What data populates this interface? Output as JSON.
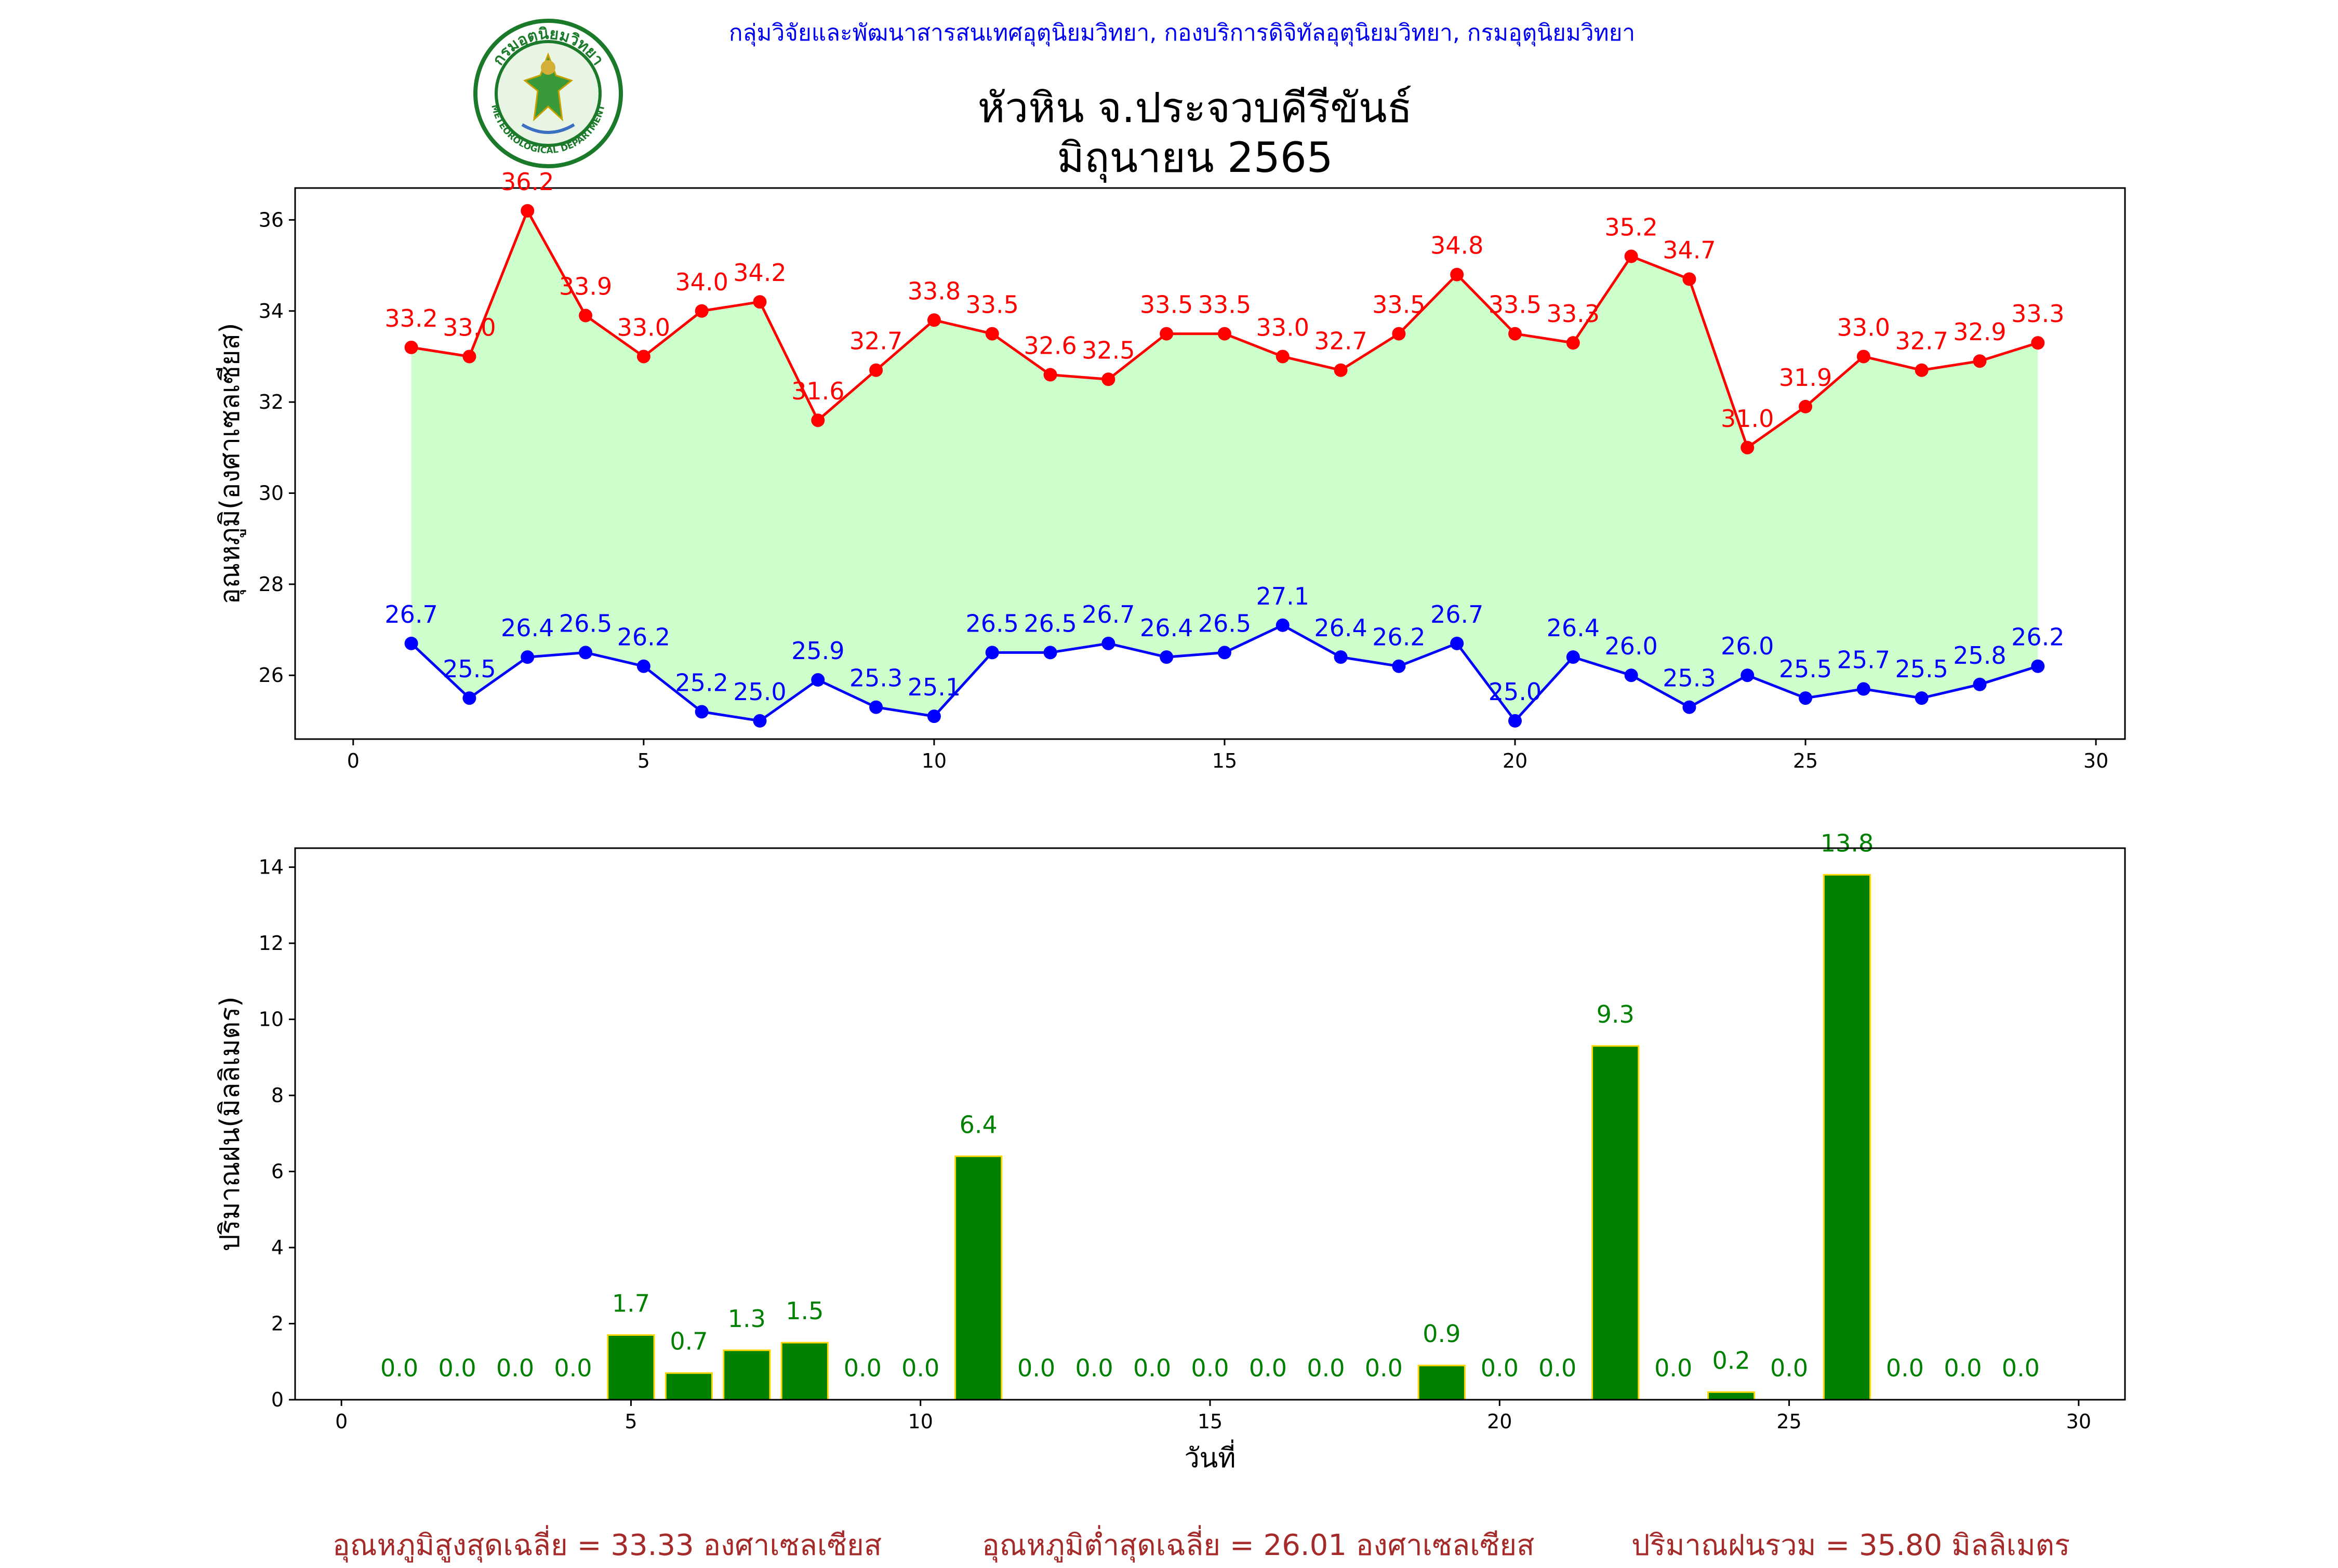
{
  "header": {
    "agency": "กลุ่มวิจัยและพัฒนาสารสนเทศอุตุนิยมวิทยา, กองบริการดิจิทัลอุตุนิยมวิทยา, กรมอุตุนิยมวิทยา",
    "title_line1": "หัวหิน จ.ประจวบคีรีขันธ์",
    "title_line2": "มิถุนายน 2565",
    "logo_text_top": "กรมอุตุนิยมวิทยา",
    "logo_text_bottom": "METEOROLOGICAL DEPARTMENT"
  },
  "footer": {
    "avg_max": "อุณหภูมิสูงสุดเฉลี่ย = 33.33 องศาเซลเซียส",
    "avg_min": "อุณหภูมิต่ำสุดเฉลี่ย = 26.01 องศาเซลเซียส",
    "total_rain": "ปริมาณฝนรวม = 35.80 มิลลิเมตร"
  },
  "colors": {
    "max_line": "#ff0000",
    "min_line": "#0000ff",
    "fill": "#ccffcc",
    "bar": "#008000",
    "bar_edge": "#ffd700",
    "bar_label": "#008000",
    "header": "#0000ee",
    "footer": "#a52a2a"
  },
  "chart_data": [
    {
      "type": "line",
      "ylabel": "อุณหภูมิ(องศาเซลเซียส)",
      "xlim": [
        -1,
        30.5
      ],
      "ylim": [
        24.6,
        36.7
      ],
      "x_ticks": [
        0,
        5,
        10,
        15,
        20,
        25,
        30
      ],
      "y_ticks": [
        26,
        28,
        30,
        32,
        34,
        36
      ],
      "grid": false,
      "x": [
        1,
        2,
        3,
        4,
        5,
        6,
        7,
        8,
        9,
        10,
        11,
        12,
        13,
        14,
        15,
        16,
        17,
        18,
        19,
        20,
        21,
        22,
        23,
        24,
        25,
        26,
        27,
        28,
        29
      ],
      "series": [
        {
          "key": "max",
          "values": [
            33.2,
            33.0,
            36.2,
            33.9,
            33.0,
            34.0,
            34.2,
            31.6,
            32.7,
            33.8,
            33.5,
            32.6,
            32.5,
            33.5,
            33.5,
            33.0,
            32.7,
            33.5,
            34.8,
            33.5,
            33.3,
            35.2,
            34.7,
            31.0,
            31.9,
            33.0,
            32.7,
            32.9,
            33.3
          ]
        },
        {
          "key": "min",
          "values": [
            26.7,
            25.5,
            26.4,
            26.5,
            26.2,
            25.2,
            25.0,
            25.9,
            25.3,
            25.1,
            26.5,
            26.5,
            26.7,
            26.4,
            26.5,
            27.1,
            26.4,
            26.2,
            26.7,
            25.0,
            26.4,
            26.0,
            25.3,
            26.0,
            25.5,
            25.7,
            25.5,
            25.8,
            26.2
          ]
        }
      ]
    },
    {
      "type": "bar",
      "xlabel": "วันที่",
      "ylabel": "ปริมาณฝน(มิลลิเมตร)",
      "xlim": [
        -0.8,
        30.8
      ],
      "ylim": [
        0,
        14.5
      ],
      "x_ticks": [
        0,
        5,
        10,
        15,
        20,
        25,
        30
      ],
      "y_ticks": [
        0,
        2,
        4,
        6,
        8,
        10,
        12,
        14
      ],
      "grid": false,
      "x": [
        1,
        2,
        3,
        4,
        5,
        6,
        7,
        8,
        9,
        10,
        11,
        12,
        13,
        14,
        15,
        16,
        17,
        18,
        19,
        20,
        21,
        22,
        23,
        24,
        25,
        26,
        27,
        28,
        29
      ],
      "values": [
        0.0,
        0.0,
        0.0,
        0.0,
        1.7,
        0.7,
        1.3,
        1.5,
        0.0,
        0.0,
        6.4,
        0.0,
        0.0,
        0.0,
        0.0,
        0.0,
        0.0,
        0.0,
        0.9,
        0.0,
        0.0,
        9.3,
        0.0,
        0.2,
        0.0,
        13.8,
        0.0,
        0.0,
        0.0
      ]
    }
  ]
}
